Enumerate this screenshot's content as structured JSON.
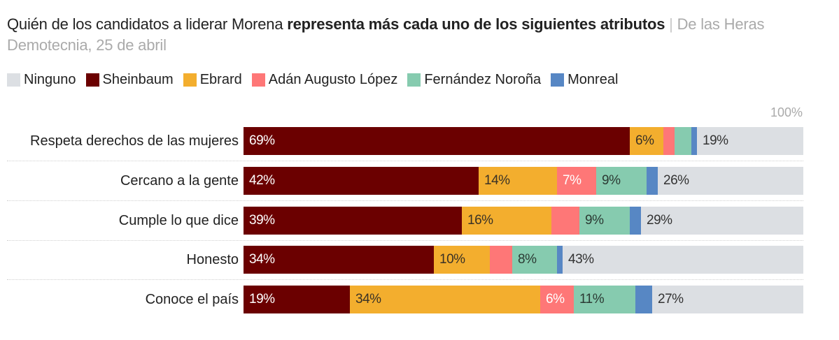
{
  "header": {
    "title_regular": "Quién de los candidatos a liderar Morena ",
    "title_bold": "representa más cada uno de los siguientes atributos",
    "separator": " | ",
    "source": "De las Heras Demotecnia, 25 de abril"
  },
  "colors": {
    "Ninguno": "#dcdfe3",
    "Sheinbaum": "#6b0000",
    "Ebrard": "#f3ae2e",
    "Adán Augusto López": "#fe7777",
    "Fernández Noroña": "#86cbaf",
    "Monreal": "#5787c4"
  },
  "label_colors": {
    "Sheinbaum": "#ffffff",
    "Ebrard": "#3a3226",
    "Adán Augusto López": "#ffffff",
    "Fernández Noroña": "#2b3a33",
    "Monreal": "#ffffff",
    "Ninguno": "#333333"
  },
  "chart_data": {
    "type": "bar",
    "orientation": "horizontal",
    "stacked": true,
    "title": "Quién de los candidatos a liderar Morena representa más cada uno de los siguientes atributos",
    "source": "De las Heras Demotecnia, 25 de abril",
    "legend_position": "top-left",
    "legend": [
      "Ninguno",
      "Sheinbaum",
      "Ebrard",
      "Adán Augusto López",
      "Fernández Noroña",
      "Monreal"
    ],
    "stack_order": [
      "Sheinbaum",
      "Ebrard",
      "Adán Augusto López",
      "Fernández Noroña",
      "Monreal",
      "Ninguno"
    ],
    "axis_max_label": "100%",
    "xlim": [
      0,
      100
    ],
    "unit": "%",
    "categories": [
      "Respeta derechos de las mujeres",
      "Cercano a la gente",
      "Cumple lo que dice",
      "Honesto",
      "Conoce el país"
    ],
    "series": [
      {
        "name": "Sheinbaum",
        "values": [
          69,
          42,
          39,
          34,
          19
        ],
        "labeled": [
          true,
          true,
          true,
          true,
          true
        ]
      },
      {
        "name": "Ebrard",
        "values": [
          6,
          14,
          16,
          10,
          34
        ],
        "labeled": [
          true,
          true,
          true,
          true,
          true
        ]
      },
      {
        "name": "Adán Augusto López",
        "values": [
          2,
          7,
          5,
          4,
          6
        ],
        "labeled": [
          false,
          true,
          false,
          false,
          true
        ]
      },
      {
        "name": "Fernández Noroña",
        "values": [
          3,
          9,
          9,
          8,
          11
        ],
        "labeled": [
          false,
          true,
          true,
          true,
          true
        ]
      },
      {
        "name": "Monreal",
        "values": [
          1,
          2,
          2,
          1,
          3
        ],
        "labeled": [
          false,
          false,
          false,
          false,
          false
        ]
      },
      {
        "name": "Ninguno",
        "values": [
          19,
          26,
          29,
          43,
          27
        ],
        "labeled": [
          true,
          true,
          true,
          true,
          true
        ]
      }
    ]
  }
}
